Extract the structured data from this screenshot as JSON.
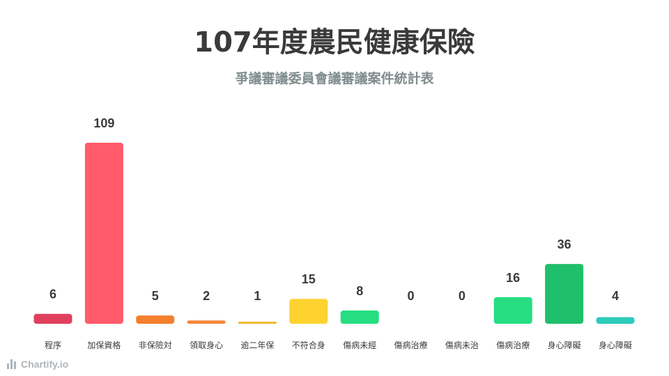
{
  "chart_data": {
    "type": "bar",
    "title": "107年度農民健康保險",
    "subtitle": "爭議審議委員會議審議案件統計表",
    "categories": [
      "程序",
      "加保資格",
      "非保險対",
      "領取身心",
      "逾二年保",
      "不符合身",
      "傷病未經",
      "傷病治療",
      "傷病未治",
      "傷病治療",
      "身心障礙",
      "身心障礙"
    ],
    "values": [
      6,
      109,
      5,
      2,
      1,
      15,
      8,
      0,
      0,
      16,
      36,
      4
    ],
    "colors": [
      "#e0405e",
      "#ff5b6b",
      "#f47f2c",
      "#f4893a",
      "#f2b82d",
      "#fed330",
      "#26de81",
      "#26de81",
      "#26de81",
      "#26de81",
      "#20bf6b",
      "#2bcbba"
    ],
    "ylim": [
      0,
      109
    ],
    "grid": false,
    "legend": false
  },
  "brand": {
    "name": "Chartify.io"
  }
}
